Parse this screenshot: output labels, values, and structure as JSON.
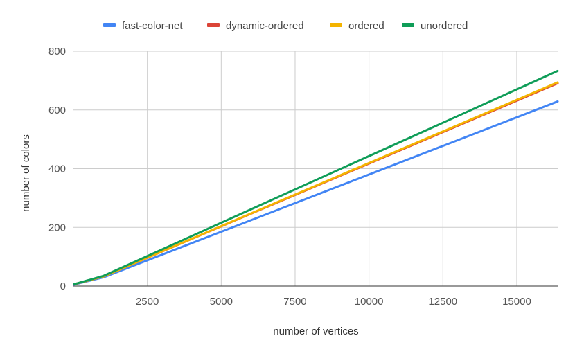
{
  "chart_data": {
    "type": "line",
    "xlabel": "number of vertices",
    "ylabel": "number of colors",
    "xlim": [
      0,
      16384
    ],
    "ylim": [
      0,
      800
    ],
    "x_ticks": [
      2500,
      5000,
      7500,
      10000,
      12500,
      15000
    ],
    "y_ticks": [
      0,
      200,
      400,
      600,
      800
    ],
    "grid": true,
    "legend_position": "top",
    "series": [
      {
        "name": "fast-color-net",
        "color": "#4285f4",
        "points": [
          [
            16,
            5
          ],
          [
            1024,
            30
          ],
          [
            16384,
            629
          ]
        ]
      },
      {
        "name": "dynamic-ordered",
        "color": "#db4437",
        "points": [
          [
            16,
            6
          ],
          [
            1024,
            33
          ],
          [
            16384,
            691
          ]
        ]
      },
      {
        "name": "ordered",
        "color": "#f4b400",
        "points": [
          [
            16,
            6
          ],
          [
            1024,
            33
          ],
          [
            16384,
            694
          ]
        ]
      },
      {
        "name": "unordered",
        "color": "#0f9d58",
        "points": [
          [
            16,
            6
          ],
          [
            1024,
            35
          ],
          [
            16384,
            733
          ]
        ]
      }
    ]
  }
}
